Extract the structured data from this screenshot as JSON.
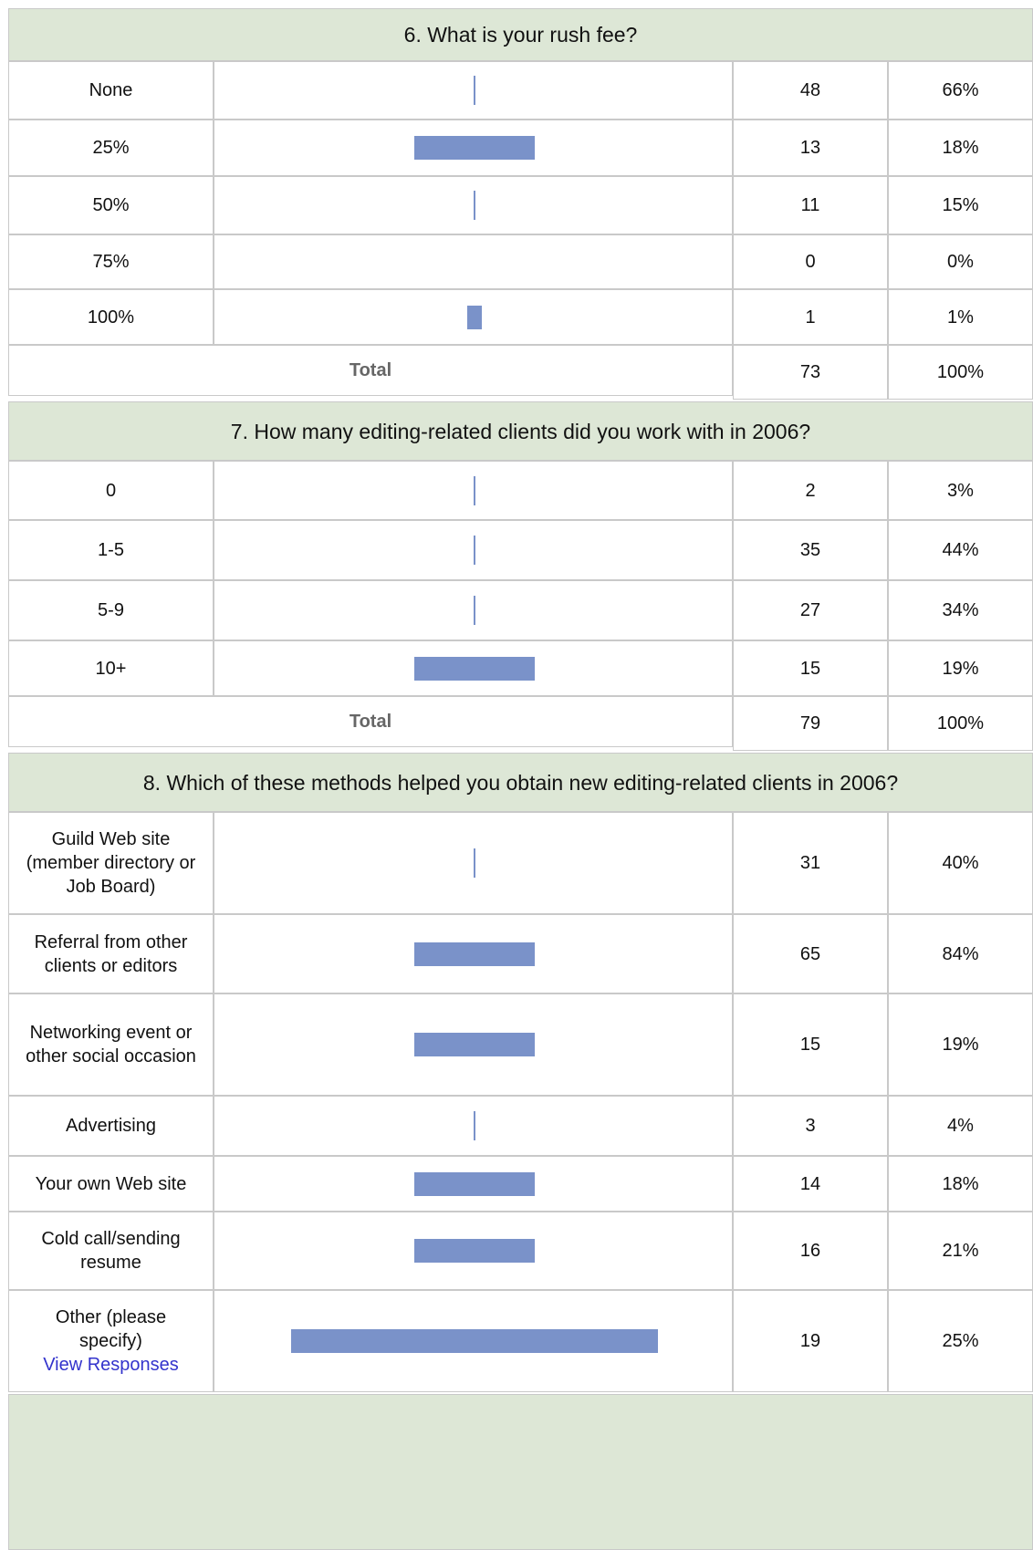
{
  "sections": [
    {
      "title": "6. What is your rush fee?",
      "rows": [
        {
          "label": "None",
          "count": 48,
          "percent": "66%"
        },
        {
          "label": "25%",
          "count": 13,
          "percent": "18%"
        },
        {
          "label": "50%",
          "count": 11,
          "percent": "15%"
        },
        {
          "label": "75%",
          "count": 0,
          "percent": "0%"
        },
        {
          "label": "100%",
          "count": 1,
          "percent": "1%"
        }
      ],
      "total": {
        "label": "Total",
        "count": 73,
        "percent": "100%"
      }
    },
    {
      "title": "7. How many editing-related clients did you work with in 2006?",
      "rows": [
        {
          "label": "0",
          "count": 2,
          "percent": "3%"
        },
        {
          "label": "1-5",
          "count": 35,
          "percent": "44%"
        },
        {
          "label": "5-9",
          "count": 27,
          "percent": "34%"
        },
        {
          "label": "10+",
          "count": 15,
          "percent": "19%"
        }
      ],
      "total": {
        "label": "Total",
        "count": 79,
        "percent": "100%"
      }
    },
    {
      "title": "8. Which of these methods helped you obtain new editing-related clients in 2006?",
      "rows": [
        {
          "label": "Guild Web site (member directory or Job Board)",
          "count": 31,
          "percent": "40%"
        },
        {
          "label": "Referral from other clients or editors",
          "count": 65,
          "percent": "84%"
        },
        {
          "label": "Networking event or other social occasion",
          "count": 15,
          "percent": "19%"
        },
        {
          "label": "Advertising",
          "count": 3,
          "percent": "4%"
        },
        {
          "label": "Your own Web site",
          "count": 14,
          "percent": "18%"
        },
        {
          "label": "Cold call/sending resume",
          "count": 16,
          "percent": "21%"
        },
        {
          "label": "Other (please specify)",
          "link": "View Responses",
          "count": 19,
          "percent": "25%"
        }
      ]
    }
  ]
}
